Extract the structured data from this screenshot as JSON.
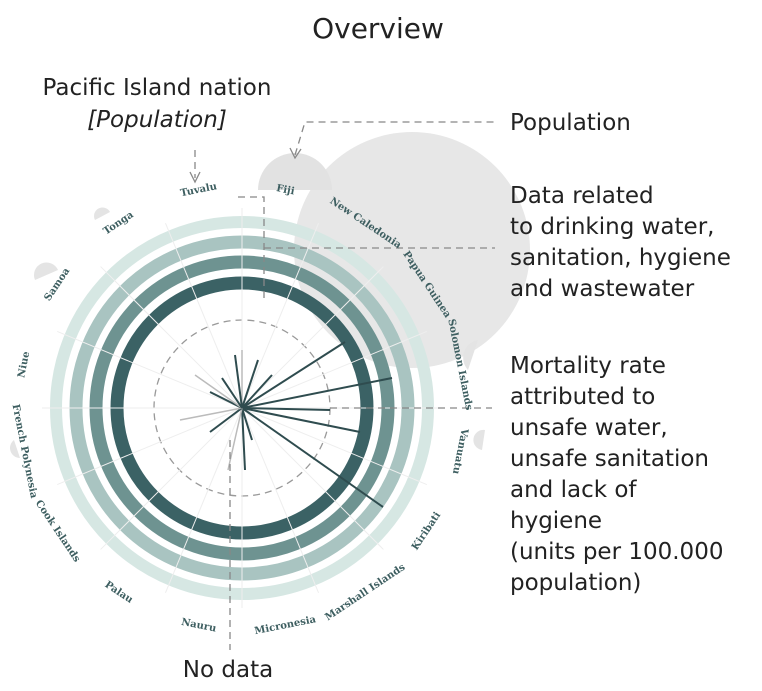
{
  "title": "Overview",
  "annotations": {
    "nation": "Pacific Island nation",
    "population_hint": "[Population]",
    "population": "Population",
    "wash_data": [
      "Data related",
      "to drinking water,",
      "sanitation, hygiene",
      "and wastewater"
    ],
    "mortality": [
      "Mortality rate",
      "attributed to",
      "unsafe water,",
      "unsafe sanitation",
      "and lack of",
      "hygiene",
      "(units per 100.000",
      "population)"
    ],
    "no_data": "No data"
  },
  "countries": [
    "Fiji",
    "New Caledonia",
    "Papua Guinea",
    "Solomon Islands",
    "Vanuatu",
    "Kiribati",
    "Marshall Islands",
    "Micronesia",
    "Nauru",
    "Palau",
    "Cook Islands",
    "French Polynesia",
    "Niue",
    "Samoa",
    "Tonga",
    "Tuvalu"
  ]
}
